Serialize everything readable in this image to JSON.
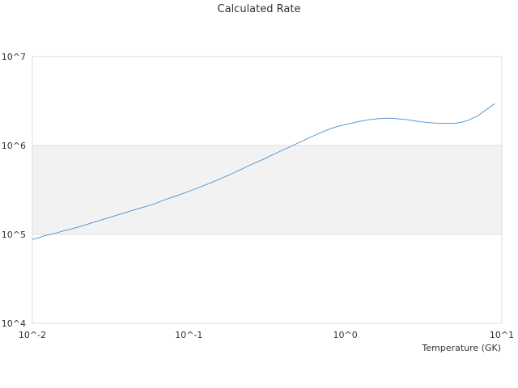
{
  "chart_data": {
    "type": "line",
    "title": "Calculated Rate",
    "xlabel": "Temperature (GK)",
    "ylabel": "",
    "x_scale": "log",
    "y_scale": "log",
    "xlim": [
      0.01,
      10
    ],
    "ylim": [
      10000,
      10000000
    ],
    "x_tick_labels": [
      "10^-2",
      "10^-1",
      "10^0",
      "10^1"
    ],
    "y_tick_labels": [
      "10^4",
      "10^5",
      "10^6",
      "10^7"
    ],
    "grid": "horizontal bands",
    "series": [
      {
        "color": "#5b9bd5",
        "x": [
          0.01,
          0.011,
          0.012,
          0.014,
          0.016,
          0.018,
          0.02,
          0.025,
          0.03,
          0.04,
          0.05,
          0.06,
          0.07,
          0.08,
          0.09,
          0.1,
          0.12,
          0.14,
          0.16,
          0.18,
          0.2,
          0.25,
          0.3,
          0.35,
          0.4,
          0.5,
          0.6,
          0.7,
          0.8,
          0.9,
          1.0,
          1.2,
          1.4,
          1.6,
          1.8,
          2.0,
          2.5,
          3.0,
          3.5,
          4.0,
          5.0,
          5.5,
          6.0,
          7.0,
          8.0,
          9.0
        ],
        "values": [
          88000,
          92000,
          97000,
          103000,
          110000,
          116000,
          122000,
          138000,
          152000,
          178000,
          200000,
          220000,
          245000,
          265000,
          285000,
          305000,
          345000,
          385000,
          425000,
          465000,
          505000,
          610000,
          700000,
          800000,
          890000,
          1070000,
          1240000,
          1400000,
          1540000,
          1650000,
          1720000,
          1850000,
          1940000,
          2000000,
          2020000,
          2020000,
          1950000,
          1850000,
          1800000,
          1780000,
          1780000,
          1820000,
          1900000,
          2150000,
          2550000,
          2950000
        ]
      }
    ]
  }
}
